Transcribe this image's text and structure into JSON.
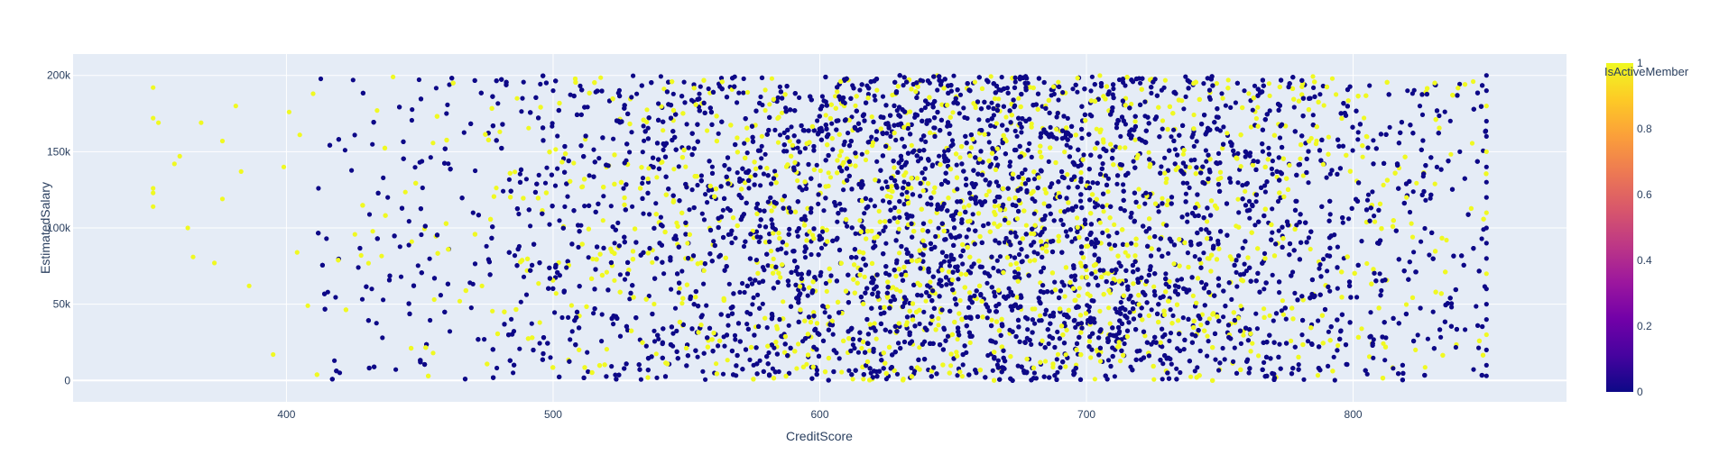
{
  "chart_data": {
    "type": "scatter",
    "title": "",
    "xlabel": "CreditScore",
    "ylabel": "EstimatedSalary",
    "xlim": [
      320,
      880
    ],
    "ylim": [
      -14000,
      214000
    ],
    "x_ticks": [
      400,
      500,
      600,
      700,
      800
    ],
    "y_ticks": [
      0,
      50000,
      100000,
      150000,
      200000
    ],
    "y_tick_labels": [
      "0",
      "50k",
      "100k",
      "150k",
      "200k"
    ],
    "grid": true,
    "colorbar": {
      "title": "IsActiveMember",
      "range": [
        0,
        1
      ],
      "ticks": [
        0,
        0.2,
        0.4,
        0.6,
        0.8,
        1
      ],
      "tick_labels": [
        "0",
        "0.2",
        "0.4",
        "0.6",
        "0.8",
        "1"
      ],
      "colorscale": [
        "#0d0887",
        "#46039f",
        "#7201a8",
        "#9c179e",
        "#bd3786",
        "#d8576b",
        "#ed7953",
        "#fb9f3a",
        "#fdca26",
        "#f0f921"
      ]
    },
    "color_field": "IsActiveMember",
    "points": [
      [
        350,
        192000,
        1
      ],
      [
        350,
        172000,
        1
      ],
      [
        352,
        169000,
        1
      ],
      [
        350,
        126000,
        1
      ],
      [
        350,
        123000,
        1
      ],
      [
        350,
        114000,
        1
      ],
      [
        358,
        142000,
        1
      ],
      [
        360,
        147000,
        1
      ],
      [
        363,
        100000,
        1
      ],
      [
        365,
        81000,
        1
      ],
      [
        368,
        169000,
        1
      ],
      [
        373,
        77000,
        1
      ],
      [
        376,
        157000,
        1
      ],
      [
        376,
        119000,
        1
      ],
      [
        381,
        180000,
        1
      ],
      [
        383,
        137000,
        1
      ],
      [
        386,
        62000,
        1
      ],
      [
        395,
        17000,
        1
      ],
      [
        399,
        140000,
        1
      ],
      [
        401,
        176000,
        1
      ],
      [
        404,
        84000,
        1
      ],
      [
        405,
        161000,
        1
      ],
      [
        408,
        49000,
        1
      ],
      [
        410,
        188000,
        1
      ],
      [
        412,
        126000,
        0
      ],
      [
        415,
        93000,
        0
      ],
      [
        418,
        13000,
        0
      ],
      [
        420,
        5000,
        0
      ],
      [
        422,
        151000,
        0
      ],
      [
        425,
        197000,
        0
      ],
      [
        428,
        82000,
        1
      ],
      [
        432,
        60000,
        0
      ],
      [
        434,
        177000,
        1
      ],
      [
        436,
        28000,
        0
      ],
      [
        438,
        120000,
        0
      ],
      [
        440,
        199000,
        1
      ],
      [
        443,
        68000,
        0
      ],
      [
        447,
        91000,
        1
      ],
      [
        450,
        143000,
        0
      ],
      [
        455,
        18000,
        1
      ],
      [
        460,
        175000,
        0
      ],
      [
        465,
        52000,
        1
      ],
      [
        470,
        110000,
        0
      ],
      [
        475,
        88000,
        0
      ],
      [
        480,
        163000,
        1
      ],
      [
        485,
        5000,
        0
      ],
      [
        490,
        132000,
        0
      ],
      [
        495,
        38000,
        1
      ],
      [
        500,
        190000,
        0
      ],
      [
        505,
        74000,
        0
      ],
      [
        850,
        200000,
        0
      ],
      [
        850,
        190000,
        0
      ],
      [
        850,
        180000,
        1
      ],
      [
        850,
        170000,
        0
      ],
      [
        850,
        160000,
        0
      ],
      [
        850,
        150000,
        1
      ],
      [
        850,
        140000,
        0
      ],
      [
        850,
        130000,
        0
      ],
      [
        850,
        120000,
        0
      ],
      [
        850,
        110000,
        1
      ],
      [
        850,
        100000,
        0
      ],
      [
        850,
        90000,
        0
      ],
      [
        850,
        80000,
        0
      ],
      [
        850,
        70000,
        1
      ],
      [
        850,
        60000,
        0
      ],
      [
        850,
        50000,
        0
      ],
      [
        850,
        40000,
        0
      ],
      [
        850,
        30000,
        1
      ],
      [
        850,
        20000,
        0
      ],
      [
        850,
        10000,
        0
      ],
      [
        850,
        3000,
        0
      ],
      [
        845,
        196000,
        1
      ],
      [
        840,
        150000,
        0
      ],
      [
        835,
        92000,
        1
      ],
      [
        830,
        45000,
        0
      ],
      [
        825,
        180000,
        0
      ],
      [
        820,
        120000,
        1
      ],
      [
        815,
        8000,
        0
      ],
      [
        810,
        70000,
        0
      ],
      [
        805,
        160000,
        1
      ]
    ],
    "bulk": {
      "count": 9000,
      "x_range": [
        410,
        850
      ],
      "y_range": [
        0,
        200000
      ],
      "peak": 660,
      "spread": 100,
      "active_share": 0.28
    }
  }
}
